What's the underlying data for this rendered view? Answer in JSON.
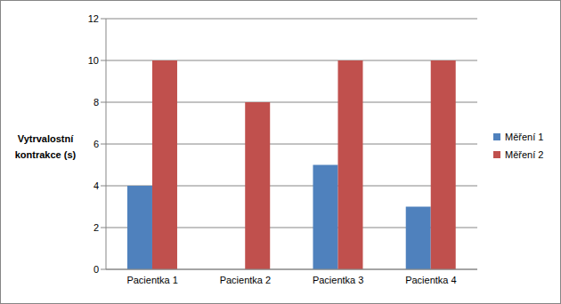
{
  "chart_data": {
    "type": "bar",
    "y_label": "Vytrvalostní kontrakce (s)",
    "categories": [
      "Pacientka 1",
      "Pacientka 2",
      "Pacientka 3",
      "Pacientka 4"
    ],
    "series": [
      {
        "name": "Měření 1",
        "color": "#4f81bd",
        "values": [
          4,
          0,
          5,
          3
        ]
      },
      {
        "name": "Měření 2",
        "color": "#c0504d",
        "values": [
          10,
          8,
          10,
          10
        ]
      }
    ],
    "ylim": [
      0,
      12
    ],
    "yticks": [
      0,
      2,
      4,
      6,
      8,
      10,
      12
    ],
    "grid": true,
    "legend": "right"
  }
}
